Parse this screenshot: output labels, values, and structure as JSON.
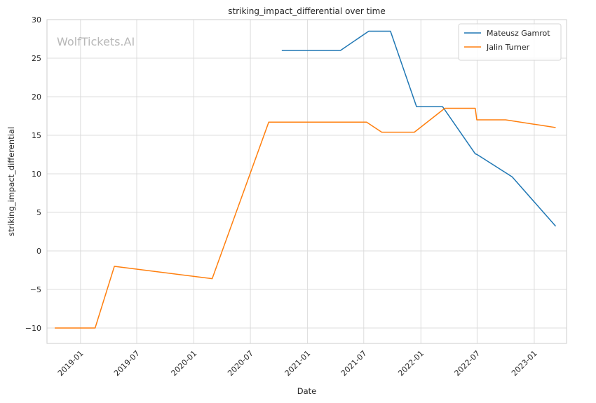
{
  "chart_data": {
    "type": "line",
    "title": "striking_impact_differential over time",
    "xlabel": "Date",
    "ylabel": "striking_impact_differential",
    "watermark": "WolfTickets.AI",
    "ylim": [
      -12,
      30
    ],
    "xlim": [
      "2018-09-15",
      "2023-04-15"
    ],
    "y_ticks": [
      -10,
      -5,
      0,
      5,
      10,
      15,
      20,
      25,
      30
    ],
    "y_tick_labels": [
      "−10",
      "−5",
      "0",
      "5",
      "10",
      "15",
      "20",
      "25",
      "30"
    ],
    "x_ticks": [
      "2019-01-01",
      "2019-07-01",
      "2020-01-01",
      "2020-07-01",
      "2021-01-01",
      "2021-07-01",
      "2022-01-01",
      "2022-07-01",
      "2023-01-01"
    ],
    "x_tick_labels": [
      "2019-01",
      "2019-07",
      "2020-01",
      "2020-07",
      "2021-01",
      "2021-07",
      "2022-01",
      "2022-07",
      "2023-01"
    ],
    "grid": true,
    "legend_position": "top-right",
    "series": [
      {
        "name": "Mateusz Gamrot",
        "color": "#1f77b4",
        "points": [
          {
            "x": "2020-10-10",
            "y": 26.0
          },
          {
            "x": "2021-04-17",
            "y": 26.0
          },
          {
            "x": "2021-07-17",
            "y": 28.5
          },
          {
            "x": "2021-09-25",
            "y": 28.5
          },
          {
            "x": "2021-12-18",
            "y": 18.7
          },
          {
            "x": "2022-03-12",
            "y": 18.7
          },
          {
            "x": "2022-06-25",
            "y": 12.6
          },
          {
            "x": "2022-07-01",
            "y": 12.5
          },
          {
            "x": "2022-10-22",
            "y": 9.6
          },
          {
            "x": "2023-03-11",
            "y": 3.2
          }
        ]
      },
      {
        "name": "Jalin Turner",
        "color": "#ff7f0e",
        "points": [
          {
            "x": "2018-10-10",
            "y": -10.0
          },
          {
            "x": "2019-02-17",
            "y": -10.0
          },
          {
            "x": "2019-04-20",
            "y": -2.0
          },
          {
            "x": "2020-02-29",
            "y": -3.6
          },
          {
            "x": "2020-08-29",
            "y": 16.7
          },
          {
            "x": "2021-07-10",
            "y": 16.7
          },
          {
            "x": "2021-08-28",
            "y": 15.4
          },
          {
            "x": "2021-12-11",
            "y": 15.4
          },
          {
            "x": "2022-03-19",
            "y": 18.5
          },
          {
            "x": "2022-06-25",
            "y": 18.5
          },
          {
            "x": "2022-06-30",
            "y": 17.0
          },
          {
            "x": "2022-10-01",
            "y": 17.0
          },
          {
            "x": "2023-03-11",
            "y": 16.0
          }
        ]
      }
    ]
  }
}
